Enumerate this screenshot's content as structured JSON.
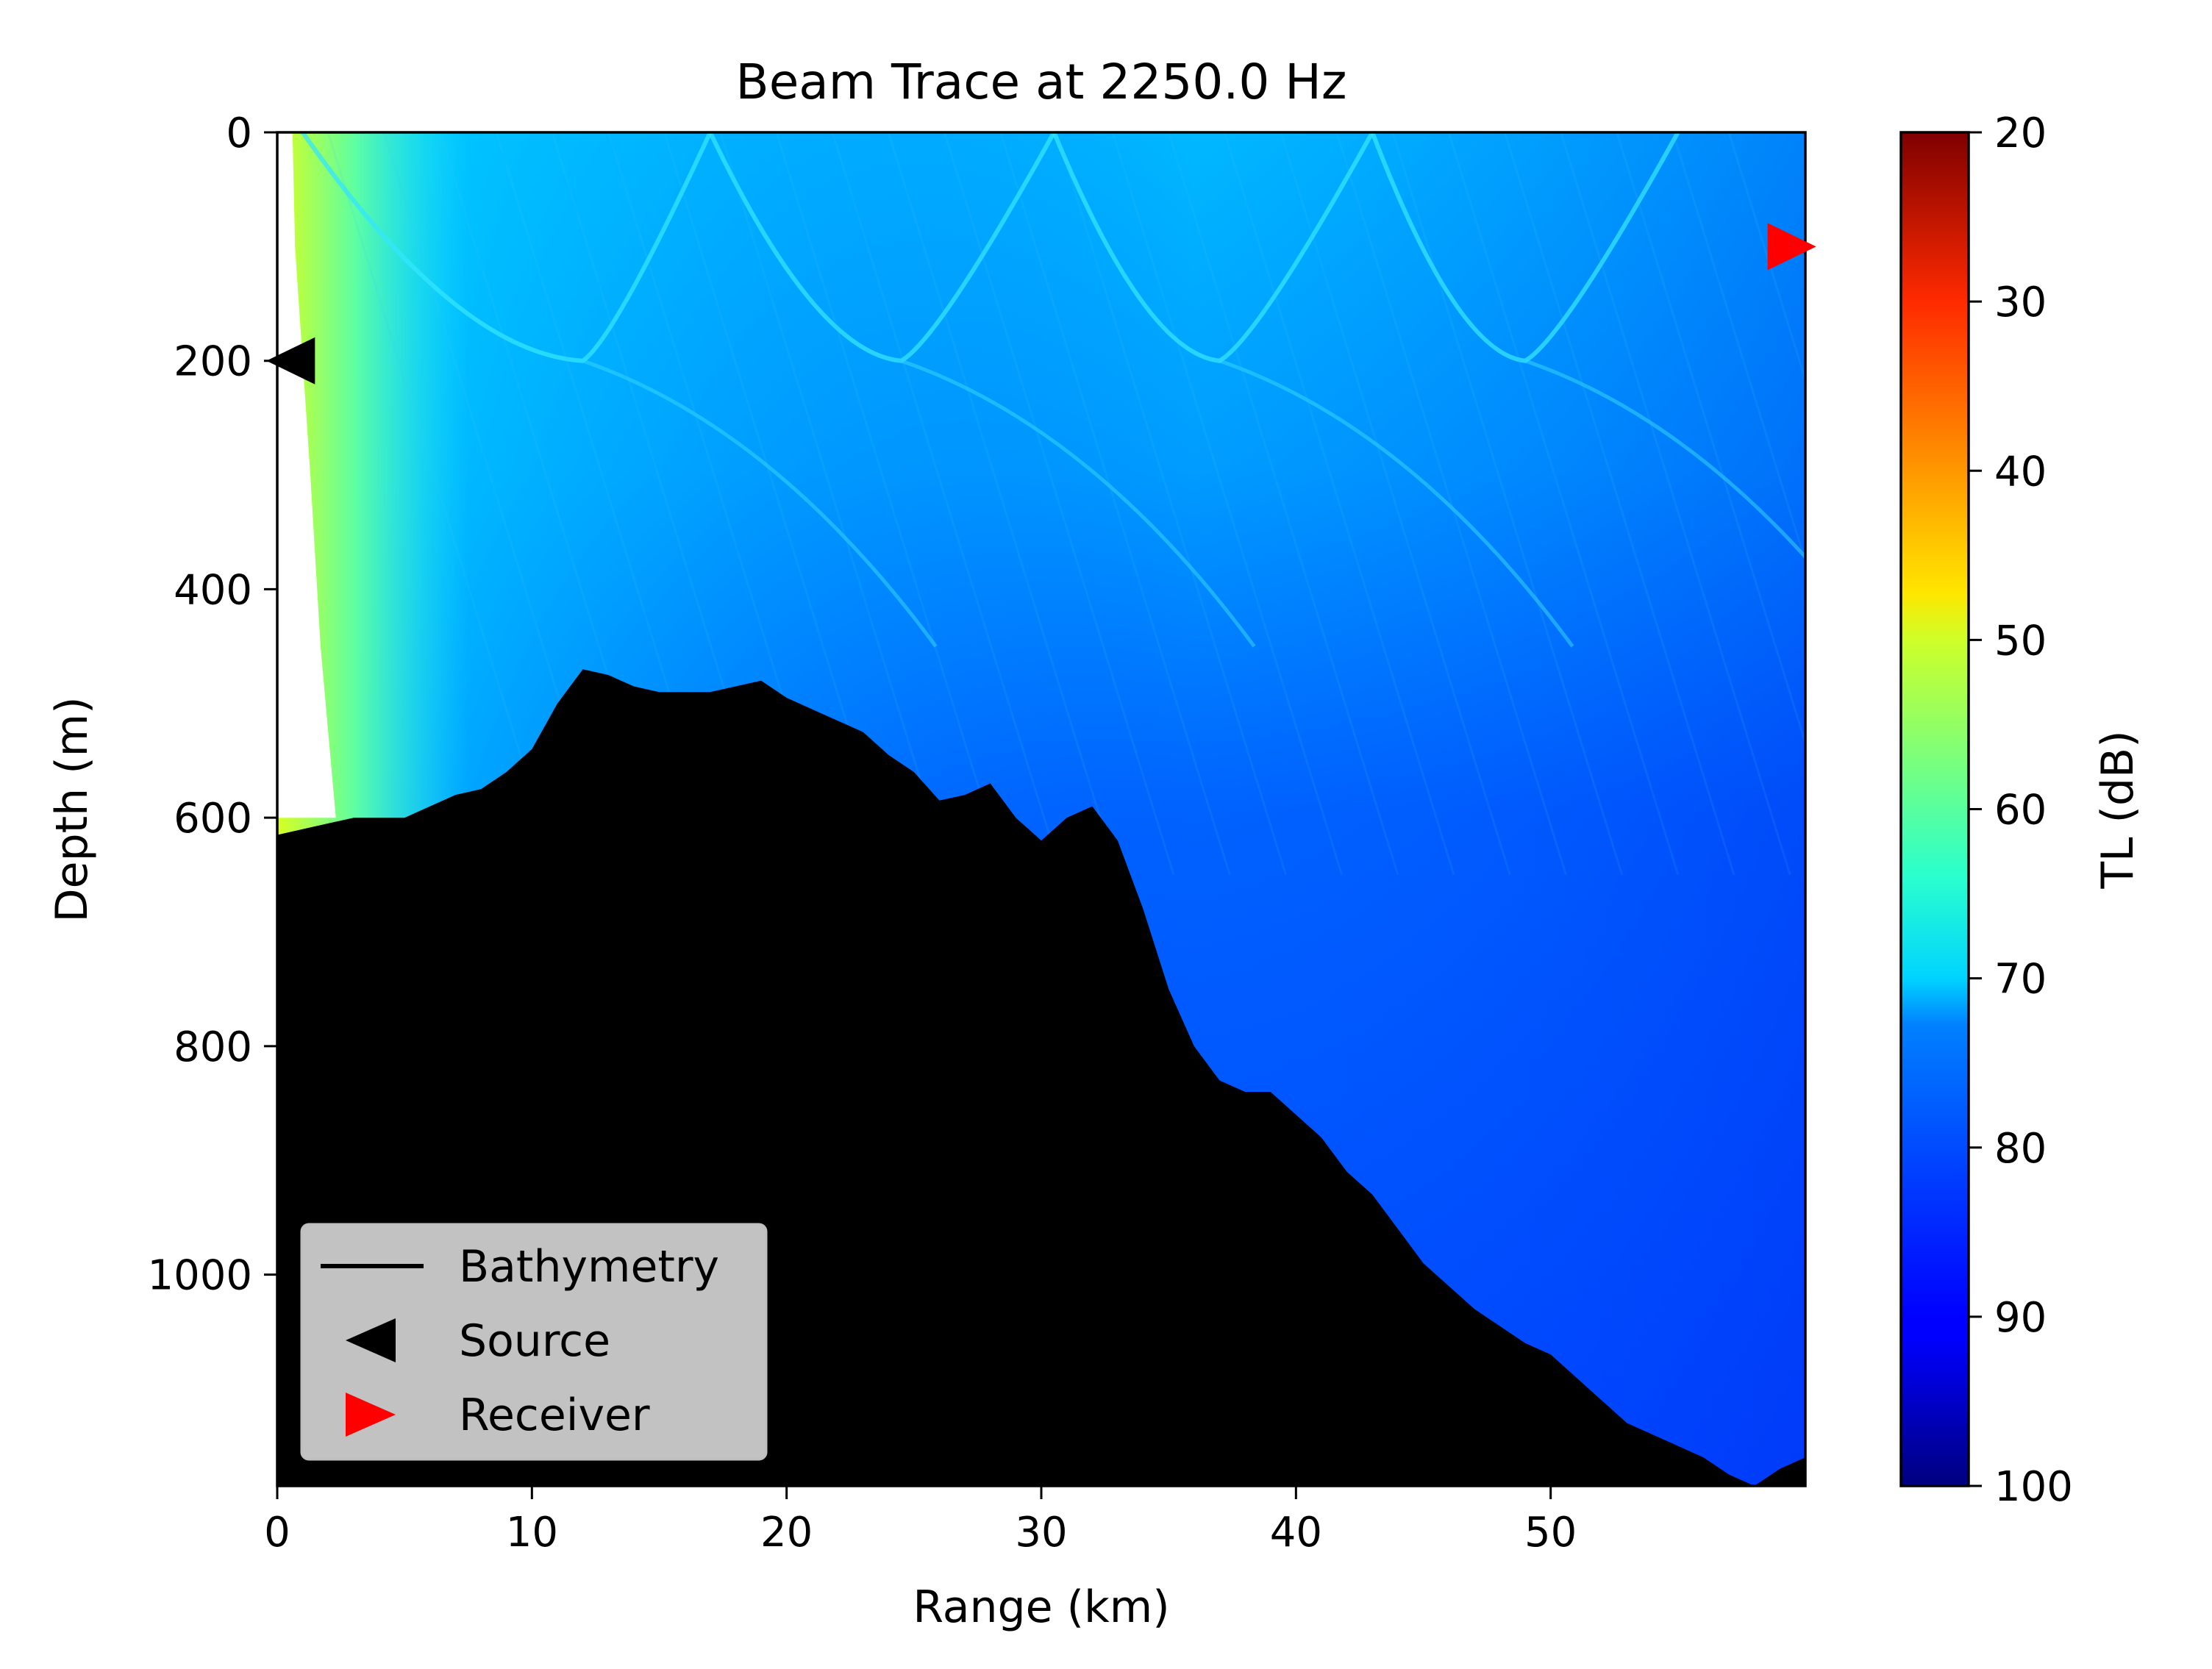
{
  "chart_data": {
    "type": "heatmap",
    "title": "Beam Trace at 2250.0 Hz",
    "xlabel": "Range (km)",
    "ylabel": "Depth (m)",
    "xlim": [
      0,
      60
    ],
    "ylim": [
      1185,
      0
    ],
    "xticks": [
      "0",
      "10",
      "20",
      "30",
      "40",
      "50"
    ],
    "yticks": [
      "0",
      "200",
      "400",
      "600",
      "800",
      "1000"
    ],
    "colorbar": {
      "label": "TL (dB)",
      "range": [
        20,
        100
      ],
      "reversed": true,
      "colormap": "jet",
      "ticks": [
        "20",
        "30",
        "40",
        "50",
        "60",
        "70",
        "80",
        "90",
        "100"
      ]
    },
    "legend": {
      "placement": "lower-left",
      "entries": [
        {
          "label": "Bathymetry",
          "marker": "line",
          "color": "#000000"
        },
        {
          "label": "Source",
          "marker": "left-triangle",
          "color": "#000000"
        },
        {
          "label": "Receiver",
          "marker": "right-triangle",
          "color": "#ff0000"
        }
      ]
    },
    "source": {
      "range_km": 0.5,
      "depth_m": 200
    },
    "receiver": {
      "range_km": 59.5,
      "depth_m": 100
    },
    "bathymetry": {
      "range_km": [
        0,
        2,
        3,
        5,
        6,
        7,
        8,
        9,
        10,
        11,
        12,
        13,
        14,
        15,
        16,
        17,
        18,
        19,
        20,
        21,
        22,
        23,
        24,
        25,
        26,
        27,
        28,
        29,
        30,
        31,
        32,
        33,
        34,
        35,
        36,
        37,
        38,
        39,
        40,
        41,
        42,
        43,
        44,
        45,
        46,
        47,
        48,
        49,
        50,
        51,
        52,
        53,
        54,
        55,
        56,
        57,
        58,
        59,
        60
      ],
      "depth_m": [
        615,
        605,
        600,
        600,
        590,
        580,
        575,
        560,
        540,
        500,
        470,
        475,
        485,
        490,
        490,
        490,
        485,
        480,
        495,
        505,
        515,
        525,
        545,
        560,
        585,
        580,
        570,
        600,
        620,
        600,
        590,
        620,
        680,
        750,
        800,
        830,
        840,
        840,
        860,
        880,
        910,
        930,
        960,
        990,
        1010,
        1030,
        1045,
        1060,
        1070,
        1090,
        1110,
        1130,
        1140,
        1150,
        1160,
        1175,
        1185,
        1170,
        1160
      ]
    },
    "shadow_zone": {
      "edge_range_km": [
        0.6,
        0.7,
        1.0,
        1.3,
        1.7,
        2.3
      ],
      "edge_depth_m": [
        0,
        100,
        200,
        300,
        450,
        600
      ]
    },
    "caustics": {
      "surface_cusps_km": [
        1,
        17,
        30.5,
        43,
        55
      ],
      "depth_cusps_km": [
        12,
        24.5,
        37,
        49
      ],
      "cusp_depth_m": 200,
      "lower_turning_depth_m": 450
    }
  }
}
